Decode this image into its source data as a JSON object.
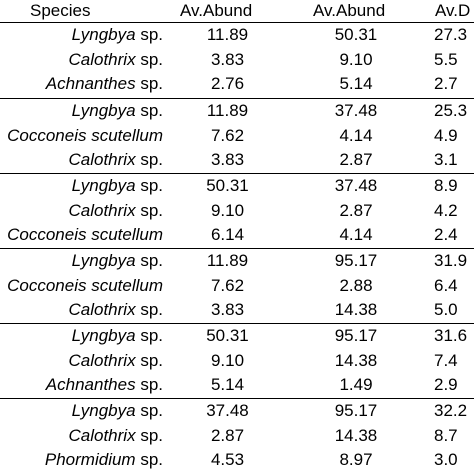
{
  "header": {
    "species": "Species",
    "av_abund_1": "Av.Abund",
    "av_abund_2": "Av.Abund",
    "av_diss": "Av.D"
  },
  "groups": [
    {
      "rows": [
        {
          "genus": "Lyngbya",
          "suffix": " sp.",
          "a1": "11.89",
          "a2": "50.31",
          "a3": "27.3"
        },
        {
          "genus": "Calothrix",
          "suffix": " sp.",
          "a1": "3.83",
          "a2": "9.10",
          "a3": "5.5"
        },
        {
          "genus": "Achnanthes",
          "suffix": " sp.",
          "a1": "2.76",
          "a2": "5.14",
          "a3": "2.7"
        }
      ]
    },
    {
      "rows": [
        {
          "genus": "Lyngbya",
          "suffix": " sp.",
          "a1": "11.89",
          "a2": "37.48",
          "a3": "25.3"
        },
        {
          "genus": "Cocconeis scutellum",
          "suffix": "",
          "a1": "7.62",
          "a2": "4.14",
          "a3": "4.9"
        },
        {
          "genus": "Calothrix",
          "suffix": " sp.",
          "a1": "3.83",
          "a2": "2.87",
          "a3": "3.1"
        }
      ]
    },
    {
      "rows": [
        {
          "genus": "Lyngbya",
          "suffix": " sp.",
          "a1": "50.31",
          "a2": "37.48",
          "a3": "8.9"
        },
        {
          "genus": "Calothrix",
          "suffix": " sp.",
          "a1": "9.10",
          "a2": "2.87",
          "a3": "4.2"
        },
        {
          "genus": "Cocconeis scutellum",
          "suffix": "",
          "a1": "6.14",
          "a2": "4.14",
          "a3": "2.4"
        }
      ]
    },
    {
      "rows": [
        {
          "genus": "Lyngbya",
          "suffix": " sp.",
          "a1": "11.89",
          "a2": "95.17",
          "a3": "31.9"
        },
        {
          "genus": "Cocconeis scutellum",
          "suffix": "",
          "a1": "7.62",
          "a2": "2.88",
          "a3": "6.4"
        },
        {
          "genus": "Calothrix",
          "suffix": " sp.",
          "a1": "3.83",
          "a2": "14.38",
          "a3": "5.0"
        }
      ]
    },
    {
      "rows": [
        {
          "genus": "Lyngbya",
          "suffix": " sp.",
          "a1": "50.31",
          "a2": "95.17",
          "a3": "31.6"
        },
        {
          "genus": "Calothrix",
          "suffix": " sp.",
          "a1": "9.10",
          "a2": "14.38",
          "a3": "7.4"
        },
        {
          "genus": "Achnanthes",
          "suffix": " sp.",
          "a1": "5.14",
          "a2": "1.49",
          "a3": "2.9"
        }
      ]
    },
    {
      "rows": [
        {
          "genus": "Lyngbya",
          "suffix": " sp.",
          "a1": "37.48",
          "a2": "95.17",
          "a3": "32.2"
        },
        {
          "genus": "Calothrix",
          "suffix": " sp.",
          "a1": "2.87",
          "a2": "14.38",
          "a3": "8.7"
        },
        {
          "genus": "Phormidium",
          "suffix": " sp.",
          "a1": "4.53",
          "a2": "8.97",
          "a3": "3.0"
        }
      ]
    }
  ]
}
